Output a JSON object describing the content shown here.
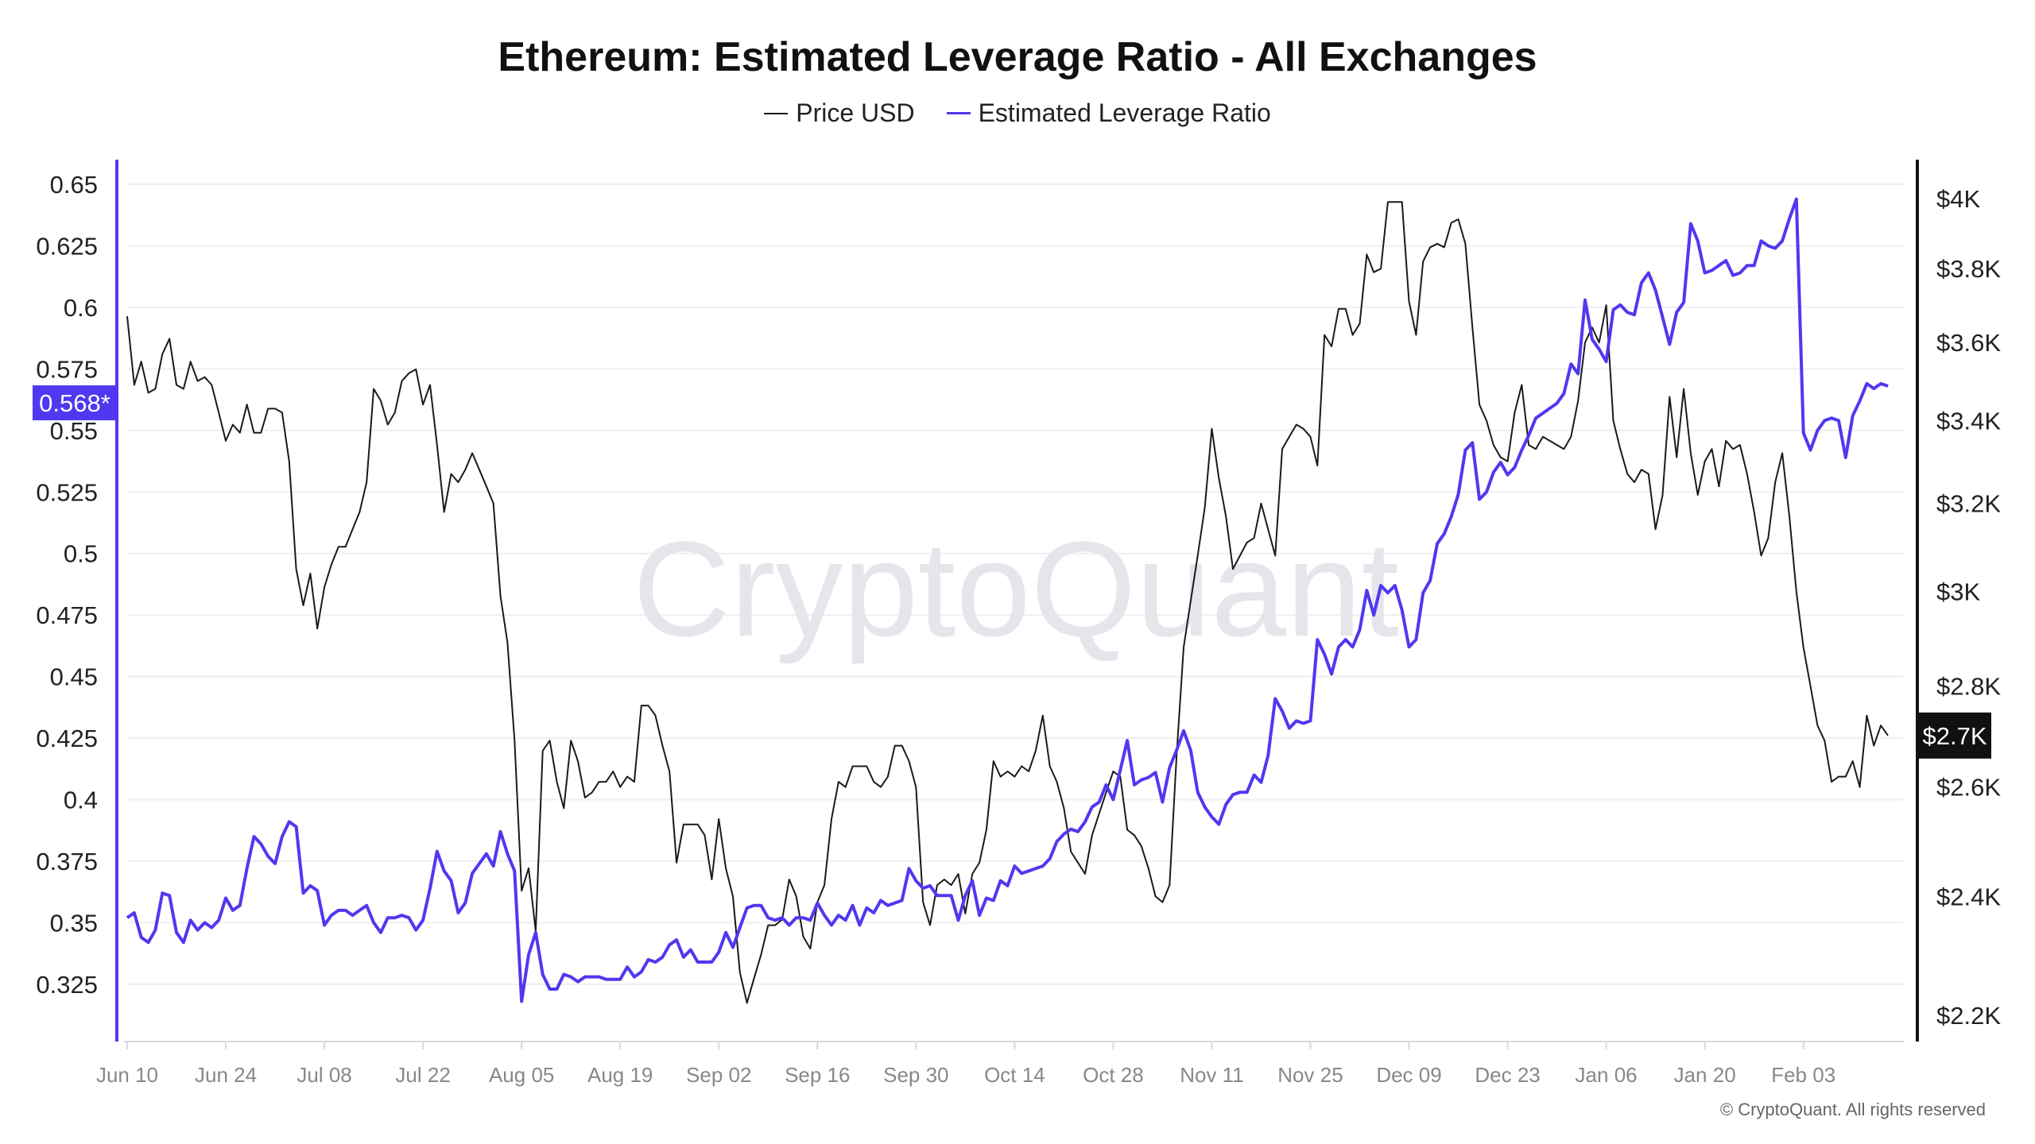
{
  "title": "Ethereum: Estimated Leverage Ratio - All Exchanges",
  "copyright": "© CryptoQuant. All rights reserved",
  "watermark": "CryptoQuant",
  "colors": {
    "price": "#1a1a1a",
    "leverage": "#5038f0",
    "grid": "#efefef",
    "x_axis_text": "#888888"
  },
  "chart_data": {
    "type": "line",
    "title": "Ethereum: Estimated Leverage Ratio - All Exchanges",
    "legend_position": "top-center",
    "grid": true,
    "x_ticks": [
      "Jun 10",
      "Jun 24",
      "Jul 08",
      "Jul 22",
      "Aug 05",
      "Aug 19",
      "Sep 02",
      "Sep 16",
      "Sep 30",
      "Oct 14",
      "Oct 28",
      "Nov 11",
      "Nov 25",
      "Dec 09",
      "Dec 23",
      "Jan 06",
      "Jan 20",
      "Feb 03"
    ],
    "left_axis": {
      "ylim": [
        0.31,
        0.66
      ],
      "ticks": [
        "0.65",
        "0.625",
        "0.6",
        "0.575",
        "0.55",
        "0.525",
        "0.5",
        "0.475",
        "0.45",
        "0.425",
        "0.4",
        "0.375",
        "0.35",
        "0.325"
      ],
      "current_label": "0.568*",
      "current_value": 0.568
    },
    "right_axis": {
      "scale": "log",
      "ticks": [
        {
          "label": "$4K",
          "value": 4000
        },
        {
          "label": "$3.8K",
          "value": 3800
        },
        {
          "label": "$3.6K",
          "value": 3600
        },
        {
          "label": "$3.4K",
          "value": 3400
        },
        {
          "label": "$3.2K",
          "value": 3200
        },
        {
          "label": "$3K",
          "value": 3000
        },
        {
          "label": "$2.8K",
          "value": 2800
        },
        {
          "label": "$2.6K",
          "value": 2600
        },
        {
          "label": "$2.4K",
          "value": 2400
        },
        {
          "label": "$2.2K",
          "value": 2200
        }
      ],
      "current_label": "$2.7K",
      "current_value": 2700
    },
    "dates": [
      "Jun 10",
      "Jun 11",
      "Jun 12",
      "Jun 13",
      "Jun 14",
      "Jun 15",
      "Jun 16",
      "Jun 17",
      "Jun 18",
      "Jun 19",
      "Jun 20",
      "Jun 21",
      "Jun 22",
      "Jun 23",
      "Jun 24",
      "Jun 25",
      "Jun 26",
      "Jun 27",
      "Jun 28",
      "Jun 29",
      "Jun 30",
      "Jul 01",
      "Jul 02",
      "Jul 03",
      "Jul 04",
      "Jul 05",
      "Jul 06",
      "Jul 07",
      "Jul 08",
      "Jul 09",
      "Jul 10",
      "Jul 11",
      "Jul 12",
      "Jul 13",
      "Jul 14",
      "Jul 15",
      "Jul 16",
      "Jul 17",
      "Jul 18",
      "Jul 19",
      "Jul 20",
      "Jul 21",
      "Jul 22",
      "Jul 23",
      "Jul 24",
      "Jul 25",
      "Jul 26",
      "Jul 27",
      "Jul 28",
      "Jul 29",
      "Jul 30",
      "Jul 31",
      "Aug 01",
      "Aug 02",
      "Aug 03",
      "Aug 04",
      "Aug 05",
      "Aug 06",
      "Aug 07",
      "Aug 08",
      "Aug 09",
      "Aug 10",
      "Aug 11",
      "Aug 12",
      "Aug 13",
      "Aug 14",
      "Aug 15",
      "Aug 16",
      "Aug 17",
      "Aug 18",
      "Aug 19",
      "Aug 20",
      "Aug 21",
      "Aug 22",
      "Aug 23",
      "Aug 24",
      "Aug 25",
      "Aug 26",
      "Aug 27",
      "Aug 28",
      "Aug 29",
      "Aug 30",
      "Aug 31",
      "Sep 01",
      "Sep 02",
      "Sep 03",
      "Sep 04",
      "Sep 05",
      "Sep 06",
      "Sep 07",
      "Sep 08",
      "Sep 09",
      "Sep 10",
      "Sep 11",
      "Sep 12",
      "Sep 13",
      "Sep 14",
      "Sep 15",
      "Sep 16",
      "Sep 17",
      "Sep 18",
      "Sep 19",
      "Sep 20",
      "Sep 21",
      "Sep 22",
      "Sep 23",
      "Sep 24",
      "Sep 25",
      "Sep 26",
      "Sep 27",
      "Sep 28",
      "Sep 29",
      "Sep 30",
      "Oct 01",
      "Oct 02",
      "Oct 03",
      "Oct 04",
      "Oct 05",
      "Oct 06",
      "Oct 07",
      "Oct 08",
      "Oct 09",
      "Oct 10",
      "Oct 11",
      "Oct 12",
      "Oct 13",
      "Oct 14",
      "Oct 15",
      "Oct 16",
      "Oct 17",
      "Oct 18",
      "Oct 19",
      "Oct 20",
      "Oct 21",
      "Oct 22",
      "Oct 23",
      "Oct 24",
      "Oct 25",
      "Oct 26",
      "Oct 27",
      "Oct 28",
      "Oct 29",
      "Oct 30",
      "Oct 31",
      "Nov 01",
      "Nov 02",
      "Nov 03",
      "Nov 04",
      "Nov 05",
      "Nov 06",
      "Nov 07",
      "Nov 08",
      "Nov 09",
      "Nov 10",
      "Nov 11",
      "Nov 12",
      "Nov 13",
      "Nov 14",
      "Nov 15",
      "Nov 16",
      "Nov 17",
      "Nov 18",
      "Nov 19",
      "Nov 20",
      "Nov 21",
      "Nov 22",
      "Nov 23",
      "Nov 24",
      "Nov 25",
      "Nov 26",
      "Nov 27",
      "Nov 28",
      "Nov 29",
      "Nov 30",
      "Dec 01",
      "Dec 02",
      "Dec 03",
      "Dec 04",
      "Dec 05",
      "Dec 06",
      "Dec 07",
      "Dec 08",
      "Dec 09",
      "Dec 10",
      "Dec 11",
      "Dec 12",
      "Dec 13",
      "Dec 14",
      "Dec 15",
      "Dec 16",
      "Dec 17",
      "Dec 18",
      "Dec 19",
      "Dec 20",
      "Dec 21",
      "Dec 22",
      "Dec 23",
      "Dec 24",
      "Dec 25",
      "Dec 26",
      "Dec 27",
      "Dec 28",
      "Dec 29",
      "Dec 30",
      "Dec 31",
      "Jan 01",
      "Jan 02",
      "Jan 03",
      "Jan 04",
      "Jan 05",
      "Jan 06",
      "Jan 07",
      "Jan 08",
      "Jan 09",
      "Jan 10",
      "Jan 11",
      "Jan 12",
      "Jan 13",
      "Jan 14",
      "Jan 15",
      "Jan 16",
      "Jan 17",
      "Jan 18",
      "Jan 19",
      "Jan 20",
      "Jan 21",
      "Jan 22",
      "Jan 23",
      "Jan 24",
      "Jan 25",
      "Jan 26",
      "Jan 27",
      "Jan 28",
      "Jan 29",
      "Jan 30",
      "Jan 31",
      "Feb 01",
      "Feb 02",
      "Feb 03",
      "Feb 04",
      "Feb 05",
      "Feb 06",
      "Feb 07",
      "Feb 08",
      "Feb 09",
      "Feb 10",
      "Feb 11",
      "Feb 12",
      "Feb 13",
      "Feb 14",
      "Feb 15"
    ],
    "series": [
      {
        "name": "Price USD",
        "axis": "right",
        "values": [
          3670,
          3490,
          3550,
          3470,
          3480,
          3570,
          3610,
          3490,
          3480,
          3550,
          3500,
          3510,
          3490,
          3420,
          3350,
          3390,
          3370,
          3440,
          3370,
          3370,
          3430,
          3430,
          3420,
          3300,
          3050,
          2970,
          3040,
          2920,
          3010,
          3060,
          3100,
          3100,
          3140,
          3180,
          3250,
          3480,
          3450,
          3390,
          3420,
          3500,
          3520,
          3530,
          3440,
          3490,
          3340,
          3180,
          3270,
          3250,
          3280,
          3320,
          3280,
          3240,
          3200,
          2990,
          2890,
          2690,
          2410,
          2450,
          2340,
          2670,
          2690,
          2610,
          2560,
          2690,
          2650,
          2580,
          2590,
          2610,
          2610,
          2630,
          2600,
          2620,
          2610,
          2760,
          2760,
          2740,
          2680,
          2630,
          2460,
          2530,
          2530,
          2530,
          2510,
          2430,
          2540,
          2450,
          2400,
          2270,
          2220,
          2260,
          2300,
          2350,
          2350,
          2360,
          2430,
          2400,
          2330,
          2310,
          2390,
          2420,
          2540,
          2610,
          2600,
          2640,
          2640,
          2640,
          2610,
          2600,
          2620,
          2680,
          2680,
          2650,
          2600,
          2390,
          2350,
          2420,
          2430,
          2420,
          2440,
          2370,
          2440,
          2460,
          2520,
          2650,
          2620,
          2630,
          2620,
          2640,
          2630,
          2670,
          2740,
          2640,
          2610,
          2560,
          2480,
          2460,
          2440,
          2510,
          2550,
          2590,
          2630,
          2620,
          2520,
          2510,
          2490,
          2450,
          2400,
          2390,
          2420,
          2660,
          2880,
          2980,
          3080,
          3190,
          3380,
          3260,
          3170,
          3050,
          3080,
          3110,
          3120,
          3200,
          3140,
          3080,
          3330,
          3360,
          3390,
          3380,
          3360,
          3290,
          3620,
          3590,
          3690,
          3690,
          3620,
          3650,
          3840,
          3790,
          3800,
          3990,
          3990,
          3990,
          3710,
          3620,
          3820,
          3860,
          3870,
          3860,
          3930,
          3940,
          3870,
          3640,
          3440,
          3400,
          3340,
          3310,
          3300,
          3420,
          3490,
          3340,
          3330,
          3360,
          3350,
          3340,
          3330,
          3360,
          3450,
          3600,
          3640,
          3600,
          3700,
          3400,
          3330,
          3270,
          3250,
          3280,
          3270,
          3140,
          3220,
          3460,
          3310,
          3480,
          3320,
          3220,
          3300,
          3330,
          3240,
          3350,
          3330,
          3340,
          3270,
          3180,
          3080,
          3120,
          3250,
          3320,
          3170,
          3000,
          2880,
          2800,
          2720,
          2690,
          2610,
          2620,
          2620,
          2650,
          2600,
          2740,
          2680,
          2720,
          2700
        ]
      },
      {
        "name": "Estimated Leverage Ratio",
        "axis": "left",
        "values": [
          0.352,
          0.354,
          0.344,
          0.342,
          0.347,
          0.362,
          0.361,
          0.346,
          0.342,
          0.351,
          0.347,
          0.35,
          0.348,
          0.351,
          0.36,
          0.355,
          0.357,
          0.372,
          0.385,
          0.382,
          0.377,
          0.374,
          0.385,
          0.391,
          0.389,
          0.362,
          0.365,
          0.363,
          0.349,
          0.353,
          0.355,
          0.355,
          0.353,
          0.355,
          0.357,
          0.35,
          0.346,
          0.352,
          0.352,
          0.353,
          0.352,
          0.347,
          0.351,
          0.364,
          0.379,
          0.371,
          0.367,
          0.354,
          0.358,
          0.37,
          0.374,
          0.378,
          0.373,
          0.387,
          0.378,
          0.371,
          0.318,
          0.337,
          0.346,
          0.329,
          0.323,
          0.323,
          0.329,
          0.328,
          0.326,
          0.328,
          0.328,
          0.328,
          0.327,
          0.327,
          0.327,
          0.332,
          0.328,
          0.33,
          0.335,
          0.334,
          0.336,
          0.341,
          0.343,
          0.336,
          0.339,
          0.334,
          0.334,
          0.334,
          0.338,
          0.346,
          0.34,
          0.348,
          0.356,
          0.357,
          0.357,
          0.352,
          0.351,
          0.352,
          0.349,
          0.352,
          0.352,
          0.351,
          0.358,
          0.353,
          0.349,
          0.353,
          0.351,
          0.357,
          0.349,
          0.356,
          0.354,
          0.359,
          0.357,
          0.358,
          0.359,
          0.372,
          0.367,
          0.364,
          0.365,
          0.361,
          0.361,
          0.361,
          0.351,
          0.361,
          0.367,
          0.353,
          0.36,
          0.359,
          0.367,
          0.365,
          0.373,
          0.37,
          0.371,
          0.372,
          0.373,
          0.376,
          0.383,
          0.386,
          0.388,
          0.387,
          0.391,
          0.397,
          0.399,
          0.406,
          0.4,
          0.412,
          0.424,
          0.406,
          0.408,
          0.409,
          0.411,
          0.399,
          0.413,
          0.42,
          0.428,
          0.42,
          0.403,
          0.397,
          0.393,
          0.39,
          0.398,
          0.402,
          0.403,
          0.403,
          0.41,
          0.407,
          0.418,
          0.441,
          0.436,
          0.429,
          0.432,
          0.431,
          0.432,
          0.465,
          0.459,
          0.451,
          0.462,
          0.465,
          0.462,
          0.469,
          0.485,
          0.475,
          0.487,
          0.484,
          0.487,
          0.477,
          0.462,
          0.465,
          0.484,
          0.489,
          0.504,
          0.508,
          0.515,
          0.524,
          0.542,
          0.545,
          0.522,
          0.525,
          0.533,
          0.537,
          0.532,
          0.535,
          0.542,
          0.548,
          0.555,
          0.557,
          0.559,
          0.561,
          0.565,
          0.577,
          0.573,
          0.603,
          0.587,
          0.583,
          0.578,
          0.599,
          0.601,
          0.598,
          0.597,
          0.61,
          0.614,
          0.607,
          0.596,
          0.585,
          0.598,
          0.602,
          0.634,
          0.627,
          0.614,
          0.615,
          0.617,
          0.619,
          0.613,
          0.614,
          0.617,
          0.617,
          0.627,
          0.625,
          0.624,
          0.627,
          0.636,
          0.644,
          0.549,
          0.542,
          0.55,
          0.554,
          0.555,
          0.554,
          0.539,
          0.556,
          0.562,
          0.569,
          0.567,
          0.569,
          0.568
        ]
      }
    ]
  }
}
